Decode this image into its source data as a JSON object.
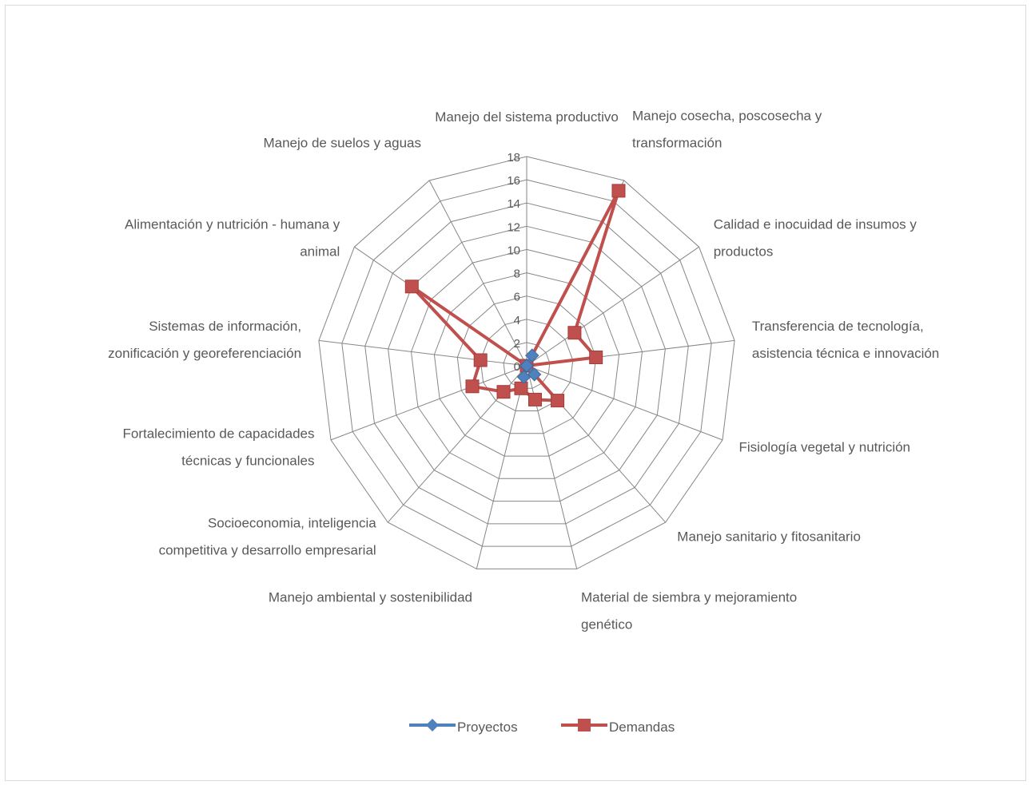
{
  "chart_data": {
    "type": "radar",
    "categories": [
      [
        "Manejo del sistema productivo"
      ],
      [
        "Manejo cosecha, poscosecha y",
        "transformación"
      ],
      [
        "Calidad e inocuidad de insumos y",
        "productos"
      ],
      [
        "Transferencia de tecnología,",
        "asistencia técnica e innovación"
      ],
      [
        "Fisiología vegetal y nutrición"
      ],
      [
        "Manejo sanitario y fitosanitario"
      ],
      [
        "Material de siembra y mejoramiento",
        "genético"
      ],
      [
        "Manejo ambiental y sostenibilidad"
      ],
      [
        "Socioeconomia, inteligencia",
        "competitiva y desarrollo empresarial"
      ],
      [
        "Fortalecimiento de capacidades",
        "técnicas y funcionales"
      ],
      [
        "Sistemas de información,",
        "zonificación y georeferenciación"
      ],
      [
        "Alimentación y nutrición - humana y",
        "animal"
      ],
      [
        "Manejo de suelos y aguas"
      ]
    ],
    "ticks": [
      "0",
      "2",
      "4",
      "6",
      "8",
      "10",
      "12",
      "14",
      "16",
      "18"
    ],
    "rmax": 18,
    "grid": true,
    "legend_position": "bottom",
    "series": [
      {
        "name": "Proyectos",
        "color": "#4f81bd",
        "marker": "diamond",
        "values": [
          0,
          1,
          0,
          0,
          0,
          1,
          0,
          1,
          0,
          0,
          0,
          0,
          0
        ]
      },
      {
        "name": "Demandas",
        "color": "#c0504d",
        "marker": "square",
        "values": [
          0,
          17,
          5,
          6,
          0,
          4,
          3,
          2,
          3,
          5,
          4,
          12,
          0
        ]
      }
    ]
  }
}
